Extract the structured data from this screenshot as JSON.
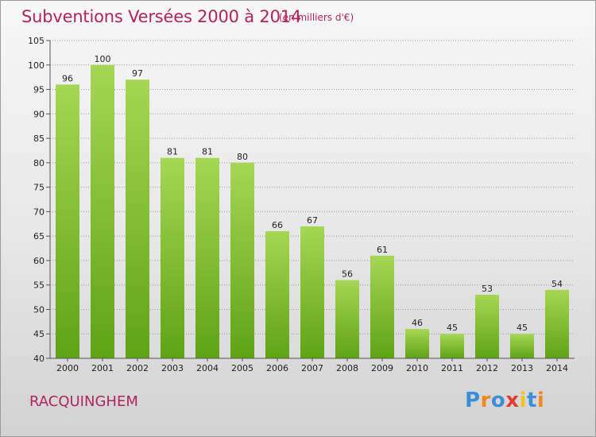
{
  "chart_data": {
    "type": "bar",
    "title": "Subventions Versées 2000 à 2014",
    "subtitle": "(en milliers d'€)",
    "categories": [
      "2000",
      "2001",
      "2002",
      "2003",
      "2004",
      "2005",
      "2006",
      "2007",
      "2008",
      "2009",
      "2010",
      "2011",
      "2012",
      "2013",
      "2014"
    ],
    "values": [
      96,
      100,
      97,
      81,
      81,
      80,
      66,
      67,
      56,
      61,
      46,
      45,
      53,
      45,
      54
    ],
    "ylim": [
      40,
      105
    ],
    "yticks": [
      40,
      45,
      50,
      55,
      60,
      65,
      70,
      75,
      80,
      85,
      90,
      95,
      100,
      105
    ],
    "grid": true,
    "bar_color_top": "#a6d655",
    "bar_color_bottom": "#5fa315"
  },
  "footer": {
    "commune": "RACQUINGHEM",
    "brand_letters": [
      "P",
      "r",
      "o",
      "x",
      "i",
      "t",
      "i"
    ],
    "brand_colors": [
      "#3b8fd9",
      "#f08a1c",
      "#3b8fd9",
      "#e23d2e",
      "#f0c419",
      "#3b8fd9",
      "#f08a1c"
    ]
  },
  "colors": {
    "title": "#b3245a",
    "grid": "#9a9a9a"
  }
}
